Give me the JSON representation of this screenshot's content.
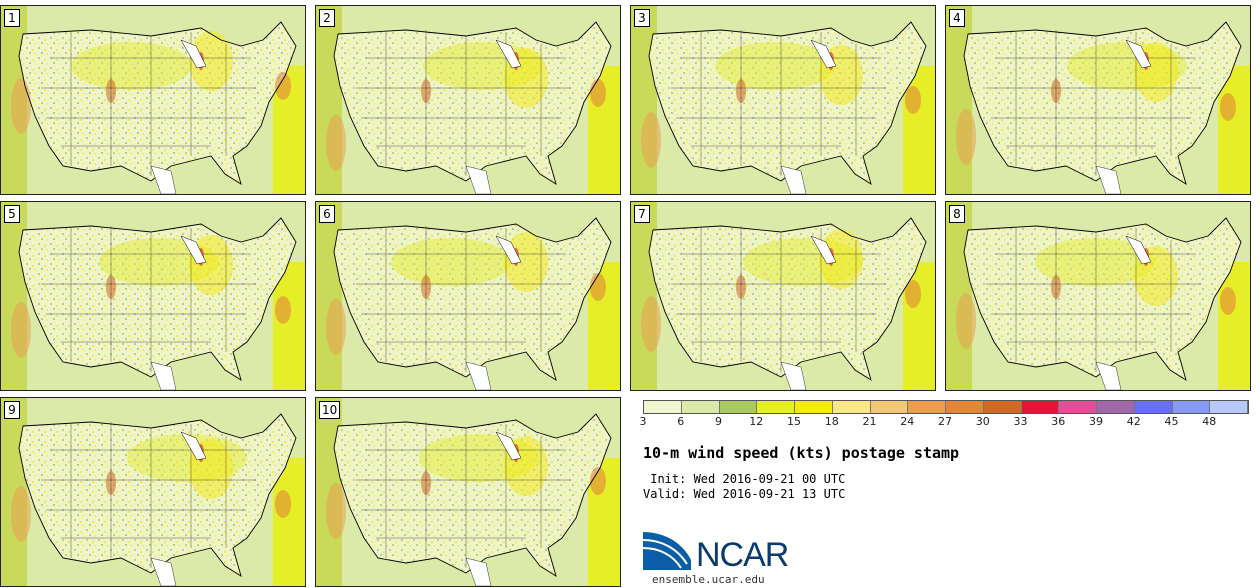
{
  "panels": [
    "1",
    "2",
    "3",
    "4",
    "5",
    "6",
    "7",
    "8",
    "9",
    "10"
  ],
  "colorbar": {
    "ticks": [
      "3",
      "6",
      "9",
      "12",
      "15",
      "18",
      "21",
      "24",
      "27",
      "30",
      "33",
      "36",
      "39",
      "42",
      "45",
      "48"
    ],
    "colors": [
      "#f0f6cf",
      "#dbeaa8",
      "#a8c964",
      "#e5ee26",
      "#f2ea10",
      "#f8e88a",
      "#f0c878",
      "#e8a050",
      "#e08838",
      "#d06828",
      "#e01838",
      "#e05098",
      "#a068a8",
      "#6870f0",
      "#8898f8",
      "#b8c8f8"
    ]
  },
  "title": "10-m wind speed (kts) postage stamp",
  "init": " Init: Wed 2016-09-21 00 UTC",
  "valid": "Valid: Wed 2016-09-21 13 UTC",
  "logo": {
    "text": "NCAR",
    "url": "ensemble.ucar.edu",
    "colors": {
      "blue": "#0a5ea8",
      "navy": "#0a3a6e"
    }
  }
}
